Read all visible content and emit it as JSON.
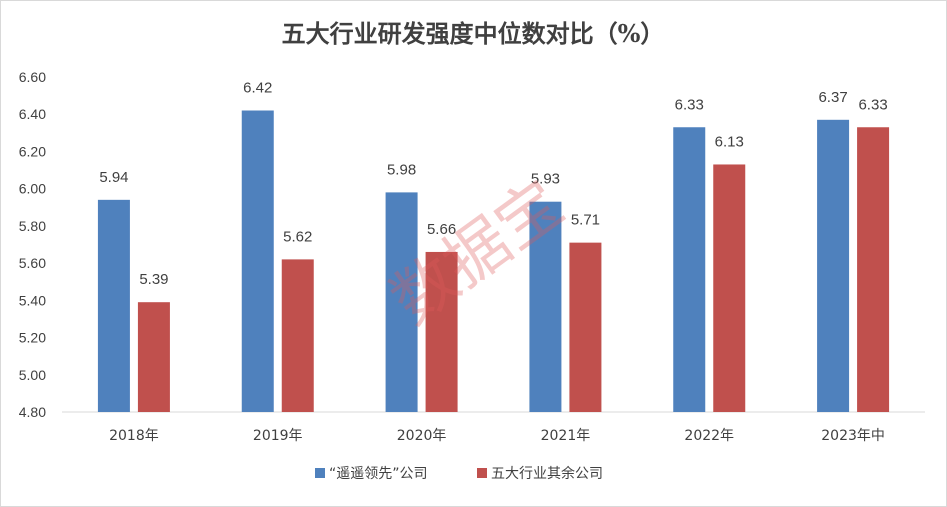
{
  "chart_data": {
    "type": "bar",
    "title": "五大行业研发强度中位数对比（%）",
    "categories": [
      "2018年",
      "2019年",
      "2020年",
      "2021年",
      "2022年",
      "2023年中"
    ],
    "series": [
      {
        "name": "“遥遥领先”公司",
        "color": "#4f81bd",
        "values": [
          5.94,
          6.42,
          5.98,
          5.93,
          6.33,
          6.37
        ]
      },
      {
        "name": "五大行业其余公司",
        "color": "#c0504d",
        "values": [
          5.39,
          5.62,
          5.66,
          5.71,
          6.13,
          6.33
        ]
      }
    ],
    "ylim": [
      4.8,
      6.6
    ],
    "yticks": [
      "4.80",
      "5.00",
      "5.20",
      "5.40",
      "5.60",
      "5.80",
      "6.00",
      "6.20",
      "6.40",
      "6.60"
    ],
    "xlabel": "",
    "ylabel": "",
    "grid": false,
    "legend": "bottom-center",
    "watermark": "数据宝"
  }
}
